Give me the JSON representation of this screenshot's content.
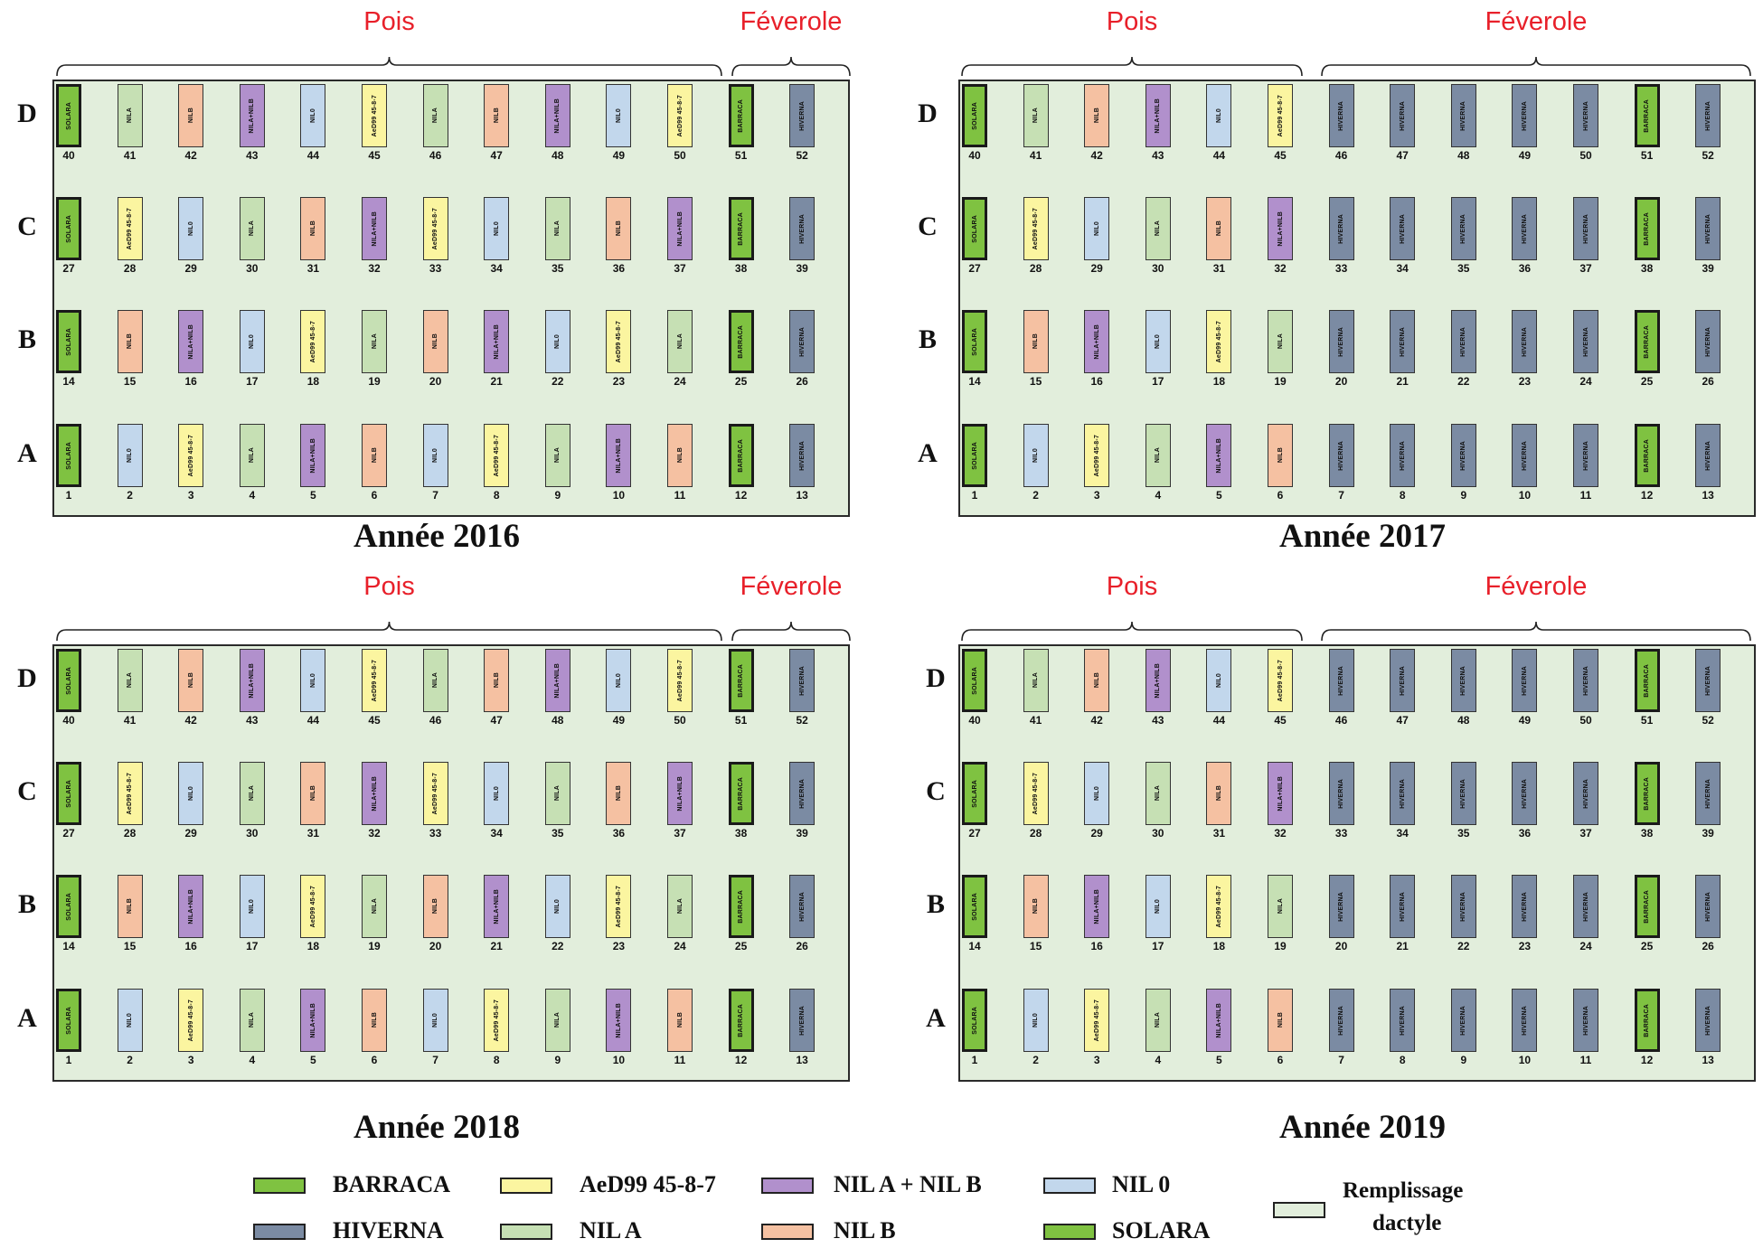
{
  "colors": {
    "BARRACA": "#7fc241",
    "SOLARA": "#7fc241",
    "HIVERNA": "#7b8ba3",
    "AeD": "#fbf5a0",
    "NILA": "#c6e0b4",
    "NILAB": "#b190cc",
    "NILB": "#f5c1a2",
    "NIL0": "#c2d7ec",
    "field": "#e2eedc",
    "group_label": "#e8202a"
  },
  "rows": [
    "A",
    "B",
    "C",
    "D"
  ],
  "panels": [
    {
      "year": "Année 2016",
      "groups": [
        {
          "label": "Pois"
        },
        {
          "label": "Féverole"
        }
      ],
      "rows": {
        "D": {
          "codes": [
            "SOLARA",
            "NILA",
            "NILB",
            "NILAB",
            "NIL0",
            "AeD",
            "NILA",
            "NILB",
            "NILAB",
            "NIL0",
            "AeD",
            "BARRACA",
            "HIVERNA"
          ],
          "numbers": [
            "40",
            "41",
            "42",
            "43",
            "44",
            "45",
            "46",
            "47",
            "48",
            "49",
            "50",
            "51",
            "52"
          ]
        },
        "C": {
          "codes": [
            "SOLARA",
            "AeD",
            "NIL0",
            "NILA",
            "NILB",
            "NILAB",
            "AeD",
            "NIL0",
            "NILA",
            "NILB",
            "NILAB",
            "BARRACA",
            "HIVERNA"
          ],
          "numbers": [
            "27",
            "28",
            "29",
            "30",
            "31",
            "32",
            "33",
            "34",
            "35",
            "36",
            "37",
            "38",
            "39"
          ]
        },
        "B": {
          "codes": [
            "SOLARA",
            "NILB",
            "NILAB",
            "NIL0",
            "AeD",
            "NILA",
            "NILB",
            "NILAB",
            "NIL0",
            "AeD",
            "NILA",
            "BARRACA",
            "HIVERNA"
          ],
          "numbers": [
            "14",
            "15",
            "16",
            "17",
            "18",
            "19",
            "20",
            "21",
            "22",
            "23",
            "24",
            "25",
            "26"
          ]
        },
        "A": {
          "codes": [
            "SOLARA",
            "NIL0",
            "AeD",
            "NILA",
            "NILAB",
            "NILB",
            "NIL0",
            "AeD",
            "NILA",
            "NILAB",
            "NILB",
            "BARRACA",
            "HIVERNA"
          ],
          "numbers": [
            "1",
            "2",
            "3",
            "4",
            "5",
            "6",
            "7",
            "8",
            "9",
            "10",
            "11",
            "12",
            "13"
          ]
        }
      }
    },
    {
      "year": "Année 2017",
      "groups": [
        {
          "label": "Pois"
        },
        {
          "label": "Féverole"
        }
      ],
      "rows": {
        "D": {
          "codes": [
            "SOLARA",
            "NILA",
            "NILB",
            "NILAB",
            "NIL0",
            "AeD",
            "HIVERNA",
            "HIVERNA",
            "HIVERNA",
            "HIVERNA",
            "HIVERNA",
            "BARRACA",
            "HIVERNA"
          ],
          "numbers": [
            "40",
            "41",
            "42",
            "43",
            "44",
            "45",
            "46",
            "47",
            "48",
            "49",
            "50",
            "51",
            "52"
          ]
        },
        "C": {
          "codes": [
            "SOLARA",
            "AeD",
            "NIL0",
            "NILA",
            "NILB",
            "NILAB",
            "HIVERNA",
            "HIVERNA",
            "HIVERNA",
            "HIVERNA",
            "HIVERNA",
            "BARRACA",
            "HIVERNA"
          ],
          "numbers": [
            "27",
            "28",
            "29",
            "30",
            "31",
            "32",
            "33",
            "34",
            "35",
            "36",
            "37",
            "38",
            "39"
          ]
        },
        "B": {
          "codes": [
            "SOLARA",
            "NILB",
            "NILAB",
            "NIL0",
            "AeD",
            "NILA",
            "HIVERNA",
            "HIVERNA",
            "HIVERNA",
            "HIVERNA",
            "HIVERNA",
            "BARRACA",
            "HIVERNA"
          ],
          "numbers": [
            "14",
            "15",
            "16",
            "17",
            "18",
            "19",
            "20",
            "21",
            "22",
            "23",
            "24",
            "25",
            "26"
          ]
        },
        "A": {
          "codes": [
            "SOLARA",
            "NIL0",
            "AeD",
            "NILA",
            "NILAB",
            "NILB",
            "HIVERNA",
            "HIVERNA",
            "HIVERNA",
            "HIVERNA",
            "HIVERNA",
            "BARRACA",
            "HIVERNA"
          ],
          "numbers": [
            "1",
            "2",
            "3",
            "4",
            "5",
            "6",
            "7",
            "8",
            "9",
            "10",
            "11",
            "12",
            "13"
          ]
        }
      }
    },
    {
      "year": "Année 2018",
      "groups": [
        {
          "label": "Pois"
        },
        {
          "label": "Féverole"
        }
      ],
      "rows": {
        "D": {
          "codes": [
            "SOLARA",
            "NILA",
            "NILB",
            "NILAB",
            "NIL0",
            "AeD",
            "NILA",
            "NILB",
            "NILAB",
            "NIL0",
            "AeD",
            "BARRACA",
            "HIVERNA"
          ],
          "numbers": [
            "40",
            "41",
            "42",
            "43",
            "44",
            "45",
            "46",
            "47",
            "48",
            "49",
            "50",
            "51",
            "52"
          ]
        },
        "C": {
          "codes": [
            "SOLARA",
            "AeD",
            "NIL0",
            "NILA",
            "NILB",
            "NILAB",
            "AeD",
            "NIL0",
            "NILA",
            "NILB",
            "NILAB",
            "BARRACA",
            "HIVERNA"
          ],
          "numbers": [
            "27",
            "28",
            "29",
            "30",
            "31",
            "32",
            "33",
            "34",
            "35",
            "36",
            "37",
            "38",
            "39"
          ]
        },
        "B": {
          "codes": [
            "SOLARA",
            "NILB",
            "NILAB",
            "NIL0",
            "AeD",
            "NILA",
            "NILB",
            "NILAB",
            "NIL0",
            "AeD",
            "NILA",
            "BARRACA",
            "HIVERNA"
          ],
          "numbers": [
            "14",
            "15",
            "16",
            "17",
            "18",
            "19",
            "20",
            "21",
            "22",
            "23",
            "24",
            "25",
            "26"
          ]
        },
        "A": {
          "codes": [
            "SOLARA",
            "NIL0",
            "AeD",
            "NILA",
            "NILAB",
            "NILB",
            "NIL0",
            "AeD",
            "NILA",
            "NILAB",
            "NILB",
            "BARRACA",
            "HIVERNA"
          ],
          "numbers": [
            "1",
            "2",
            "3",
            "4",
            "5",
            "6",
            "7",
            "8",
            "9",
            "10",
            "11",
            "12",
            "13"
          ]
        }
      }
    },
    {
      "year": "Année 2019",
      "groups": [
        {
          "label": "Pois"
        },
        {
          "label": "Féverole"
        }
      ],
      "rows": {
        "D": {
          "codes": [
            "SOLARA",
            "NILA",
            "NILB",
            "NILAB",
            "NIL0",
            "AeD",
            "HIVERNA",
            "HIVERNA",
            "HIVERNA",
            "HIVERNA",
            "HIVERNA",
            "BARRACA",
            "HIVERNA"
          ],
          "numbers": [
            "40",
            "41",
            "42",
            "43",
            "44",
            "45",
            "46",
            "47",
            "48",
            "49",
            "50",
            "51",
            "52"
          ]
        },
        "C": {
          "codes": [
            "SOLARA",
            "AeD",
            "NIL0",
            "NILA",
            "NILB",
            "NILAB",
            "HIVERNA",
            "HIVERNA",
            "HIVERNA",
            "HIVERNA",
            "HIVERNA",
            "BARRACA",
            "HIVERNA"
          ],
          "numbers": [
            "27",
            "28",
            "29",
            "30",
            "31",
            "32",
            "33",
            "34",
            "35",
            "36",
            "37",
            "38",
            "39"
          ]
        },
        "B": {
          "codes": [
            "SOLARA",
            "NILB",
            "NILAB",
            "NIL0",
            "AeD",
            "NILA",
            "HIVERNA",
            "HIVERNA",
            "HIVERNA",
            "HIVERNA",
            "HIVERNA",
            "BARRACA",
            "HIVERNA"
          ],
          "numbers": [
            "14",
            "15",
            "16",
            "17",
            "18",
            "19",
            "20",
            "21",
            "22",
            "23",
            "24",
            "25",
            "26"
          ]
        },
        "A": {
          "codes": [
            "SOLARA",
            "NIL0",
            "AeD",
            "NILA",
            "NILAB",
            "NILB",
            "HIVERNA",
            "HIVERNA",
            "HIVERNA",
            "HIVERNA",
            "HIVERNA",
            "BARRACA",
            "HIVERNA"
          ],
          "numbers": [
            "1",
            "2",
            "3",
            "4",
            "5",
            "6",
            "7",
            "8",
            "9",
            "10",
            "11",
            "12",
            "13"
          ]
        }
      }
    }
  ],
  "plot_text": {
    "SOLARA": "SOLARA",
    "BARRACA": "BARRACA",
    "HIVERNA": "HIVERNA",
    "AeD": "AeD99 45-8-7",
    "NILA": "NILA",
    "NILAB": "NILA+NILB",
    "NILB": "NILB",
    "NIL0": "NIL0"
  },
  "legend": {
    "BARRACA": "BARRACA",
    "HIVERNA": "HIVERNA",
    "AeD": "AeD99 45-8-7",
    "NILA": "NIL A",
    "NILAB": "NIL A + NIL B",
    "NILB": "NIL B",
    "NIL0": "NIL 0",
    "SOLARA": "SOLARA",
    "field_line1": "Remplissage",
    "field_line2": "dactyle"
  }
}
